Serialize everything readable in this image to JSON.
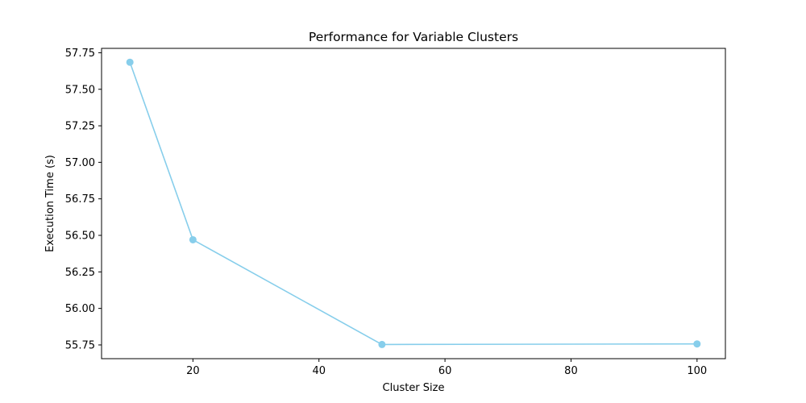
{
  "chart_data": {
    "type": "line",
    "title": "Performance for Variable Clusters",
    "xlabel": "Cluster Size",
    "ylabel": "Execution Time (s)",
    "x": [
      10,
      20,
      50,
      100
    ],
    "series": [
      {
        "values": [
          57.685,
          56.47,
          55.753,
          55.757
        ],
        "color": "#87ceeb",
        "marker": "circle"
      }
    ],
    "xlim": [
      5.5,
      104.5
    ],
    "ylim": [
      55.656,
      57.78
    ],
    "xticks": [
      20,
      40,
      60,
      80,
      100
    ],
    "xtick_labels": [
      "20",
      "40",
      "60",
      "80",
      "100"
    ],
    "yticks": [
      55.75,
      56.0,
      56.25,
      56.5,
      56.75,
      57.0,
      57.25,
      57.5,
      57.75
    ],
    "ytick_labels": [
      "55.75",
      "56.00",
      "56.25",
      "56.50",
      "56.75",
      "57.00",
      "57.25",
      "57.50",
      "57.75"
    ],
    "grid": false,
    "legend": "none"
  }
}
